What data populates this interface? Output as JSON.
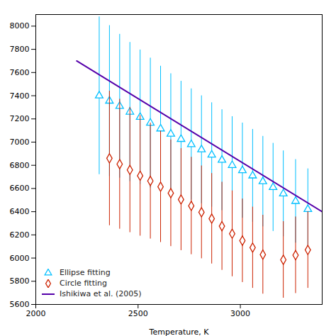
{
  "chart_data": {
    "type": "scatter",
    "xlabel": "Temperature, K",
    "xlim": [
      2000,
      3400
    ],
    "ylim": [
      5600,
      8100
    ],
    "xticks": [
      2000,
      2500,
      3000
    ],
    "yticks": [
      5600,
      5800,
      6000,
      6200,
      6400,
      6600,
      6800,
      7000,
      7200,
      7400,
      7600,
      7800,
      8000
    ],
    "grid": false,
    "legend": "lower left",
    "series": [
      {
        "name": "Ellipse fitting",
        "type": "scatter",
        "marker": "triangle",
        "color": "#00bfff",
        "x": [
          2310,
          2360,
          2410,
          2460,
          2510,
          2560,
          2610,
          2660,
          2710,
          2760,
          2810,
          2860,
          2910,
          2960,
          3010,
          3060,
          3110,
          3160,
          3210,
          3270,
          3330
        ],
        "values": [
          7400,
          7355,
          7310,
          7260,
          7215,
          7165,
          7115,
          7070,
          7025,
          6980,
          6935,
          6890,
          6845,
          6800,
          6755,
          6710,
          6660,
          6610,
          6555,
          6490,
          6420
        ],
        "yerr": [
          680,
          650,
          620,
          600,
          580,
          560,
          540,
          520,
          500,
          480,
          465,
          450,
          435,
          420,
          410,
          400,
          390,
          380,
          370,
          360,
          350
        ]
      },
      {
        "name": "Circle fitting",
        "type": "scatter",
        "marker": "diamond",
        "color": "#cc2200",
        "x": [
          2360,
          2410,
          2460,
          2510,
          2560,
          2610,
          2660,
          2710,
          2760,
          2810,
          2860,
          2910,
          2960,
          3010,
          3060,
          3110,
          3210,
          3270,
          3330
        ],
        "values": [
          6860,
          6810,
          6760,
          6710,
          6665,
          6615,
          6560,
          6505,
          6450,
          6395,
          6340,
          6275,
          6210,
          6150,
          6090,
          6030,
          5985,
          6025,
          6070
        ],
        "yerr": [
          580,
          560,
          540,
          520,
          500,
          480,
          460,
          440,
          420,
          400,
          390,
          380,
          370,
          360,
          350,
          340,
          330,
          330,
          330
        ]
      },
      {
        "name": "Ishikiwa et al. (2005)",
        "type": "line",
        "line_style": "solid",
        "color": "#5500aa",
        "x": [
          2200,
          3400
        ],
        "values": [
          7700,
          6400
        ]
      }
    ]
  }
}
